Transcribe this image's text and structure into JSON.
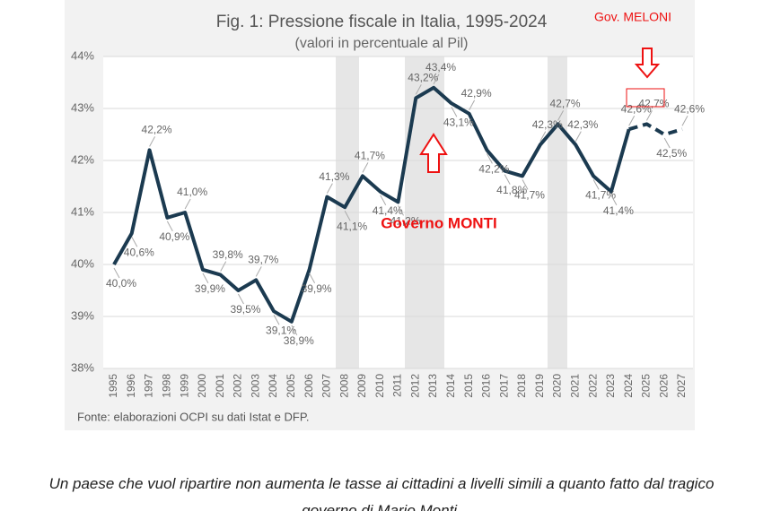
{
  "chart_data": {
    "type": "line",
    "title": "Fig. 1: Pressione fiscale in Italia, 1995-2024",
    "subtitle": "(valori in percentuale al Pil)",
    "source": "Fonte: elaborazioni OCPI su dati Istat e DFP.",
    "annotations": [
      "Governo MONTI",
      "Gov. MELONI"
    ],
    "categories": [
      "1995",
      "1996",
      "1997",
      "1998",
      "1999",
      "2000",
      "2001",
      "2002",
      "2003",
      "2004",
      "2005",
      "2006",
      "2007",
      "2008",
      "2009",
      "2010",
      "2011",
      "2012",
      "2013",
      "2014",
      "2015",
      "2016",
      "2017",
      "2018",
      "2019",
      "2020",
      "2021",
      "2022",
      "2023",
      "2024",
      "2025",
      "2026",
      "2027"
    ],
    "series": [
      {
        "color": "#1b3a50",
        "values": [
          40.0,
          40.6,
          42.2,
          40.9,
          41.0,
          39.9,
          39.8,
          39.5,
          39.7,
          39.1,
          38.9,
          39.9,
          41.3,
          41.1,
          41.7,
          41.4,
          41.2,
          43.2,
          43.4,
          43.1,
          42.9,
          42.2,
          41.8,
          41.7,
          42.3,
          42.7,
          42.3,
          41.7,
          41.4,
          42.6,
          42.7,
          42.5,
          42.6
        ],
        "value_labels": [
          "40,0%",
          "40,6%",
          "42,2%",
          "40,9%",
          "41,0%",
          "39,9%",
          "39,8%",
          "39,5%",
          "39,7%",
          "39,1%",
          "38,9%",
          "39,9%",
          "41,3%",
          "41,1%",
          "41,7%",
          "41,4%",
          "41,2%",
          "43,2%",
          "43,4%",
          "43,1%",
          "42,9%",
          "42,2%",
          "41,8%",
          "41,7%",
          "42,3%",
          "42,7%",
          "42,3%",
          "41,7%",
          "41,4%",
          "42,6%",
          "42,7%",
          "42,5%",
          "42,6%"
        ]
      }
    ],
    "ylim": [
      38,
      44
    ],
    "yticks": [
      {
        "value": 38,
        "label": "38%"
      },
      {
        "value": 39,
        "label": "39%"
      },
      {
        "value": 40,
        "label": "40%"
      },
      {
        "value": 41,
        "label": "41%"
      },
      {
        "value": 42,
        "label": "42%"
      },
      {
        "value": 43,
        "label": "43%"
      },
      {
        "value": 44,
        "label": "44%"
      }
    ],
    "grid": true
  },
  "caption": [
    "Un paese che vuol ripartire non aumenta le tasse ai cittadini a livelli simili a quanto fatto dal tragico",
    "governo di Mario Monti."
  ]
}
